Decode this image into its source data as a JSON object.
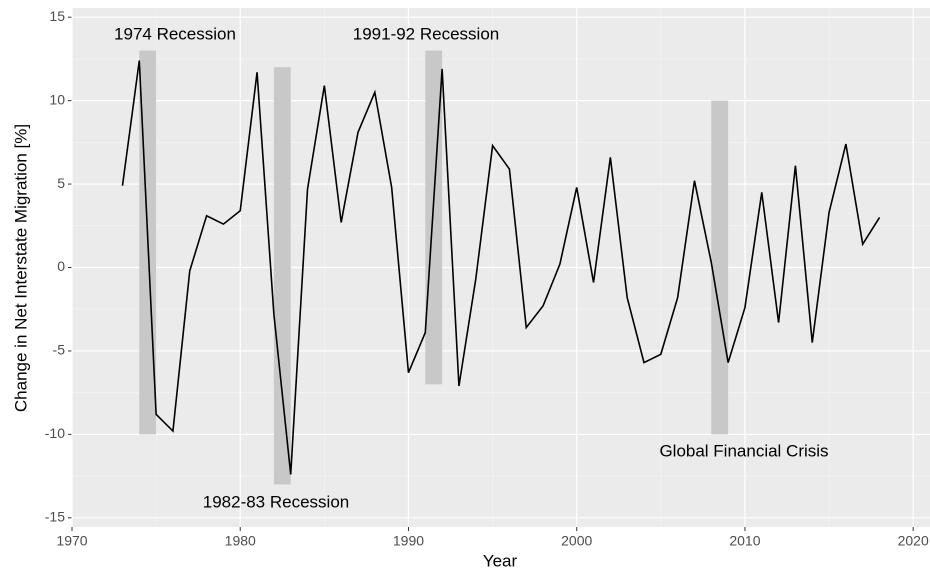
{
  "chart_data": {
    "type": "line",
    "xlabel": "Year",
    "ylabel": "Change in Net Interstate Migration [%]",
    "x": [
      1973,
      1974,
      1975,
      1976,
      1977,
      1978,
      1979,
      1980,
      1981,
      1982,
      1983,
      1984,
      1985,
      1986,
      1987,
      1988,
      1989,
      1990,
      1991,
      1992,
      1993,
      1994,
      1995,
      1996,
      1997,
      1998,
      1999,
      2000,
      2001,
      2002,
      2003,
      2004,
      2005,
      2006,
      2007,
      2008,
      2009,
      2010,
      2011,
      2012,
      2013,
      2014,
      2015,
      2016,
      2017,
      2018
    ],
    "values": [
      4.9,
      12.4,
      -8.8,
      -9.8,
      -0.2,
      3.1,
      2.6,
      3.4,
      11.7,
      -2.8,
      -12.4,
      4.7,
      10.9,
      2.7,
      8.1,
      10.5,
      4.8,
      -6.3,
      -3.9,
      11.9,
      -7.1,
      -0.7,
      7.3,
      5.9,
      -3.6,
      -2.3,
      0.2,
      4.8,
      -0.9,
      6.6,
      -1.8,
      -5.7,
      -5.2,
      -1.8,
      5.2,
      0.3,
      -5.7,
      -2.4,
      4.5,
      -3.3,
      6.1,
      -4.5,
      3.3,
      7.4,
      1.4,
      3.0
    ],
    "color": "#000000",
    "xlim": [
      1970,
      2021
    ],
    "xticks": [
      1970,
      1980,
      1990,
      2000,
      2010,
      2020
    ],
    "ylim": [
      -15.55,
      15.55
    ],
    "yticks": [
      -15,
      -10,
      -5,
      0,
      5,
      10,
      15
    ],
    "grid": true,
    "annotations": [
      {
        "label": "1974 Recession",
        "xmin": 1974,
        "xmax": 1975,
        "ymin": -10,
        "ymax": 13
      },
      {
        "label": "1982-83 Recession",
        "xmin": 1982,
        "xmax": 1983,
        "ymin": -13,
        "ymax": 12
      },
      {
        "label": "1991-92 Recession",
        "xmin": 1991,
        "xmax": 1992,
        "ymin": -7,
        "ymax": 13
      },
      {
        "label": "Global Financial Crisis",
        "xmin": 2008,
        "xmax": 2009,
        "ymin": -10,
        "ymax": 10
      }
    ]
  }
}
